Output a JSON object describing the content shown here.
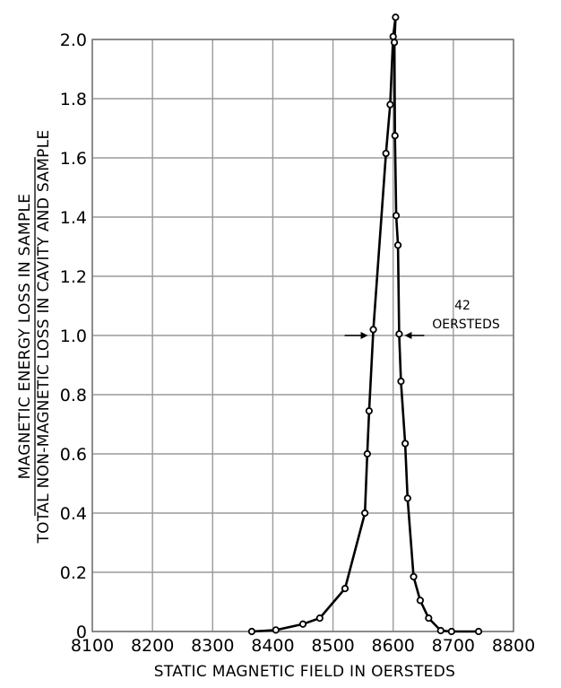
{
  "chart_data": {
    "type": "line",
    "xlabel": "STATIC MAGNETIC FIELD IN OERSTEDS",
    "ylabel_numerator": "MAGNETIC ENERGY LOSS IN SAMPLE",
    "ylabel_denominator": "TOTAL NON-MAGNETIC LOSS IN CAVITY AND SAMPLE",
    "xlim": [
      8100,
      8800
    ],
    "ylim": [
      0,
      2.0
    ],
    "x_ticks": [
      8100,
      8200,
      8300,
      8400,
      8500,
      8600,
      8700,
      8800
    ],
    "x_tick_labels": [
      "8100",
      "8200",
      "8300",
      "8400",
      "8500",
      "8600",
      "8700",
      "8800"
    ],
    "y_ticks": [
      0,
      0.2,
      0.4,
      0.6,
      0.8,
      1.0,
      1.2,
      1.4,
      1.6,
      1.8,
      2.0
    ],
    "y_tick_labels": [
      "0",
      "0.2",
      "0.4",
      "0.6",
      "0.8",
      "1.0",
      "1.2",
      "1.4",
      "1.6",
      "1.8",
      "2.0"
    ],
    "grid": true,
    "series": [
      {
        "points": [
          [
            8365,
            0.0
          ],
          [
            8405,
            0.005
          ],
          [
            8450,
            0.025
          ],
          [
            8478,
            0.045
          ],
          [
            8520,
            0.145
          ],
          [
            8553,
            0.4
          ],
          [
            8557,
            0.6
          ],
          [
            8560,
            0.745
          ],
          [
            8567,
            1.02
          ],
          [
            8588,
            1.615
          ],
          [
            8595,
            1.78
          ],
          [
            8600,
            2.01
          ],
          [
            8604,
            2.075
          ],
          [
            8602,
            1.99
          ],
          [
            8603,
            1.675
          ],
          [
            8605,
            1.405
          ],
          [
            8608,
            1.305
          ],
          [
            8610,
            1.005
          ],
          [
            8613,
            0.845
          ],
          [
            8620,
            0.635
          ],
          [
            8624,
            0.45
          ],
          [
            8634,
            0.185
          ],
          [
            8645,
            0.105
          ],
          [
            8659,
            0.045
          ],
          [
            8679,
            0.003
          ],
          [
            8697,
            0.0
          ],
          [
            8742,
            0.0
          ]
        ]
      }
    ],
    "annotation": {
      "lines": [
        "42",
        "OERSTEDS"
      ],
      "value": 42,
      "y_level": 1.0
    }
  }
}
